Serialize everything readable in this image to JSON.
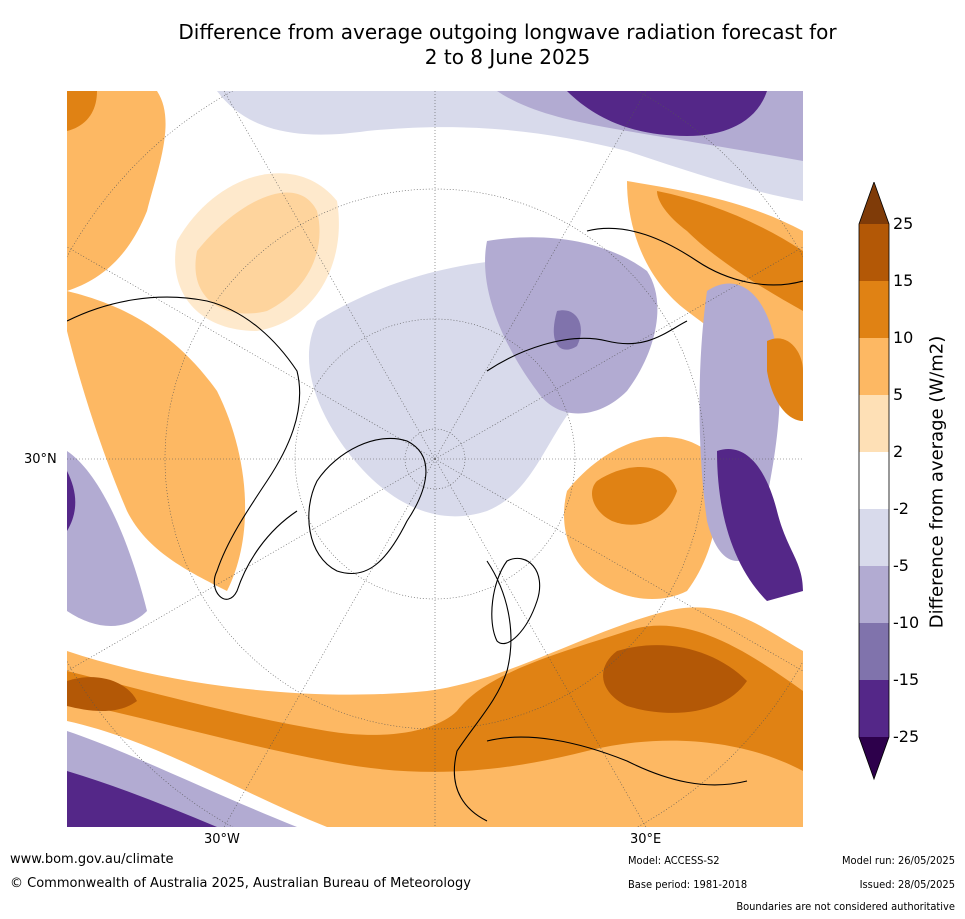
{
  "title": {
    "line1": "Difference from average outgoing longwave radiation forecast for",
    "line2": "2 to 8 June 2025"
  },
  "map": {
    "projection": "north-polar-stereographic",
    "lon_labels": [
      "30°W",
      "30°E"
    ],
    "lat_labels": [
      "30°N"
    ]
  },
  "colorbar": {
    "label": "Difference from average (W/m2)",
    "ticks": [
      "25",
      "15",
      "10",
      "5",
      "2",
      "-2",
      "-5",
      "-10",
      "-15",
      "-25"
    ],
    "colors": [
      "#7f3b08",
      "#b35806",
      "#e08214",
      "#fdb863",
      "#fee0b6",
      "#ffffff",
      "#d8daeb",
      "#b2abd2",
      "#8073ac",
      "#542788",
      "#2d004b"
    ],
    "extend": "both"
  },
  "footer": {
    "website": "www.bom.gov.au/climate",
    "copyright": "© Commonwealth of Australia 2025, Australian Bureau of Meteorology",
    "model": "Model: ACCESS-S2",
    "base_period": "Base period: 1981-2018",
    "model_run": "Model run: 26/05/2025",
    "issued": "Issued: 28/05/2025",
    "disclaimer": "Boundaries are not considered authoritative"
  }
}
